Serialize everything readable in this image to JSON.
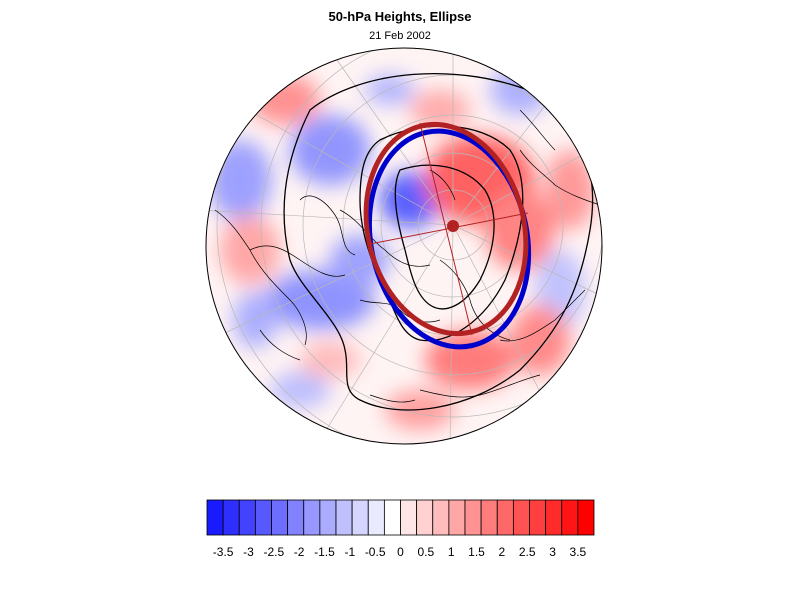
{
  "title": "50-hPa Heights, Ellipse",
  "subtitle": "21 Feb 2002",
  "colorbar": {
    "tick_labels": [
      "-3.5",
      "-3",
      "-2.5",
      "-2",
      "-1.5",
      "-1",
      "-0.5",
      "0",
      "0.5",
      "1",
      "1.5",
      "2",
      "2.5",
      "3",
      "3.5"
    ],
    "levels": 24,
    "min": -3.5,
    "max": 3.5,
    "negative_color": "#0000ff",
    "positive_color": "#ff0000",
    "neutral_color": "#ffffff"
  },
  "map": {
    "projection": "north-polar stereographic",
    "ellipse_blue_color": "#0000cc",
    "ellipse_red_color": "#b22222"
  }
}
